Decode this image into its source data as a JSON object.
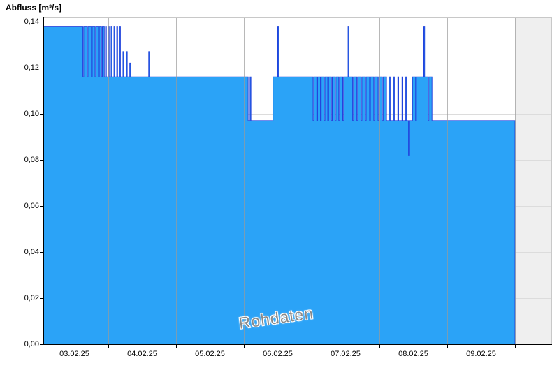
{
  "colors": {
    "fill": "#2BA3F7",
    "stroke": "#2244DD",
    "grid_h": "#dcdcdc",
    "grid_v": "#9a9a9a",
    "axis": "#000000",
    "border": "#c8c8c8",
    "out_of_range_bg": "#efefef",
    "watermark": "#8a8a8a"
  },
  "chart_data": {
    "type": "area",
    "title": "Abfluss [m³/s]",
    "xlabel": "",
    "ylabel": "Abfluss [m³/s]",
    "ylim": [
      0,
      0.14
    ],
    "grid": true,
    "legend": "none",
    "ytick_values": [
      0,
      0.02,
      0.04,
      0.06,
      0.08,
      0.1,
      0.12,
      0.14
    ],
    "ytick_labels": [
      "0,00",
      "0,02",
      "0,04",
      "0,06",
      "0,08",
      "0,10",
      "0,12",
      "0,14"
    ],
    "x_tick_labels": [
      "03.02.25",
      "04.02.25",
      "05.02.25",
      "06.02.25",
      "07.02.25",
      "08.02.25",
      "09.02.25"
    ],
    "x_domain_days": 7,
    "series": [
      {
        "name": "Rohdaten",
        "unit": "m³/s",
        "end_hour": 168,
        "step_points_hours": [
          [
            1,
            0.138
          ],
          [
            15,
            0.116
          ],
          [
            15.3,
            0.138
          ],
          [
            16.5,
            0.116
          ],
          [
            16.8,
            0.138
          ],
          [
            18,
            0.116
          ],
          [
            18.3,
            0.138
          ],
          [
            19.3,
            0.116
          ],
          [
            19.6,
            0.138
          ],
          [
            20.5,
            0.116
          ],
          [
            20.8,
            0.138
          ],
          [
            21.6,
            0.116
          ],
          [
            21.9,
            0.138
          ],
          [
            22.6,
            0.116
          ],
          [
            23,
            0.138
          ],
          [
            23.3,
            0.116
          ],
          [
            24,
            0.138
          ],
          [
            24.3,
            0.116
          ],
          [
            25,
            0.138
          ],
          [
            25.3,
            0.116
          ],
          [
            26,
            0.138
          ],
          [
            26.3,
            0.116
          ],
          [
            27,
            0.138
          ],
          [
            27.3,
            0.116
          ],
          [
            28,
            0.138
          ],
          [
            28.3,
            0.116
          ],
          [
            29.2,
            0.127
          ],
          [
            29.5,
            0.116
          ],
          [
            30.4,
            0.127
          ],
          [
            30.7,
            0.116
          ],
          [
            31.6,
            0.122
          ],
          [
            31.9,
            0.116
          ],
          [
            38.3,
            0.127
          ],
          [
            38.6,
            0.116
          ],
          [
            73.5,
            0.097
          ],
          [
            74.2,
            0.116
          ],
          [
            74.5,
            0.097
          ],
          [
            82.3,
            0.116
          ],
          [
            84,
            0.138
          ],
          [
            84.3,
            0.116
          ],
          [
            96.5,
            0.097
          ],
          [
            96.8,
            0.116
          ],
          [
            97.8,
            0.097
          ],
          [
            98.1,
            0.116
          ],
          [
            99.1,
            0.097
          ],
          [
            99.4,
            0.116
          ],
          [
            100.4,
            0.097
          ],
          [
            100.7,
            0.116
          ],
          [
            101.7,
            0.097
          ],
          [
            102,
            0.116
          ],
          [
            103,
            0.097
          ],
          [
            103.3,
            0.116
          ],
          [
            104.3,
            0.097
          ],
          [
            104.6,
            0.116
          ],
          [
            105.6,
            0.097
          ],
          [
            105.9,
            0.116
          ],
          [
            107,
            0.097
          ],
          [
            107.3,
            0.116
          ],
          [
            108.9,
            0.138
          ],
          [
            109.2,
            0.116
          ],
          [
            110.5,
            0.097
          ],
          [
            110.8,
            0.116
          ],
          [
            112,
            0.097
          ],
          [
            112.3,
            0.116
          ],
          [
            113.5,
            0.097
          ],
          [
            113.8,
            0.116
          ],
          [
            115,
            0.097
          ],
          [
            115.3,
            0.116
          ],
          [
            116.5,
            0.097
          ],
          [
            116.8,
            0.116
          ],
          [
            118,
            0.097
          ],
          [
            118.3,
            0.116
          ],
          [
            119.5,
            0.097
          ],
          [
            119.8,
            0.116
          ],
          [
            121,
            0.097
          ],
          [
            121.3,
            0.116
          ],
          [
            122.5,
            0.097
          ],
          [
            123.5,
            0.116
          ],
          [
            123.8,
            0.097
          ],
          [
            125,
            0.116
          ],
          [
            125.3,
            0.097
          ],
          [
            126.5,
            0.116
          ],
          [
            126.8,
            0.097
          ],
          [
            128,
            0.116
          ],
          [
            128.3,
            0.097
          ],
          [
            129.3,
            0.116
          ],
          [
            129.6,
            0.097
          ],
          [
            130.3,
            0.082
          ],
          [
            130.7,
            0.097
          ],
          [
            131.7,
            0.116
          ],
          [
            132.8,
            0.097
          ],
          [
            133.1,
            0.116
          ],
          [
            135.7,
            0.138
          ],
          [
            136,
            0.116
          ],
          [
            137.2,
            0.097
          ],
          [
            137.5,
            0.116
          ],
          [
            138.6,
            0.097
          ]
        ]
      }
    ]
  }
}
